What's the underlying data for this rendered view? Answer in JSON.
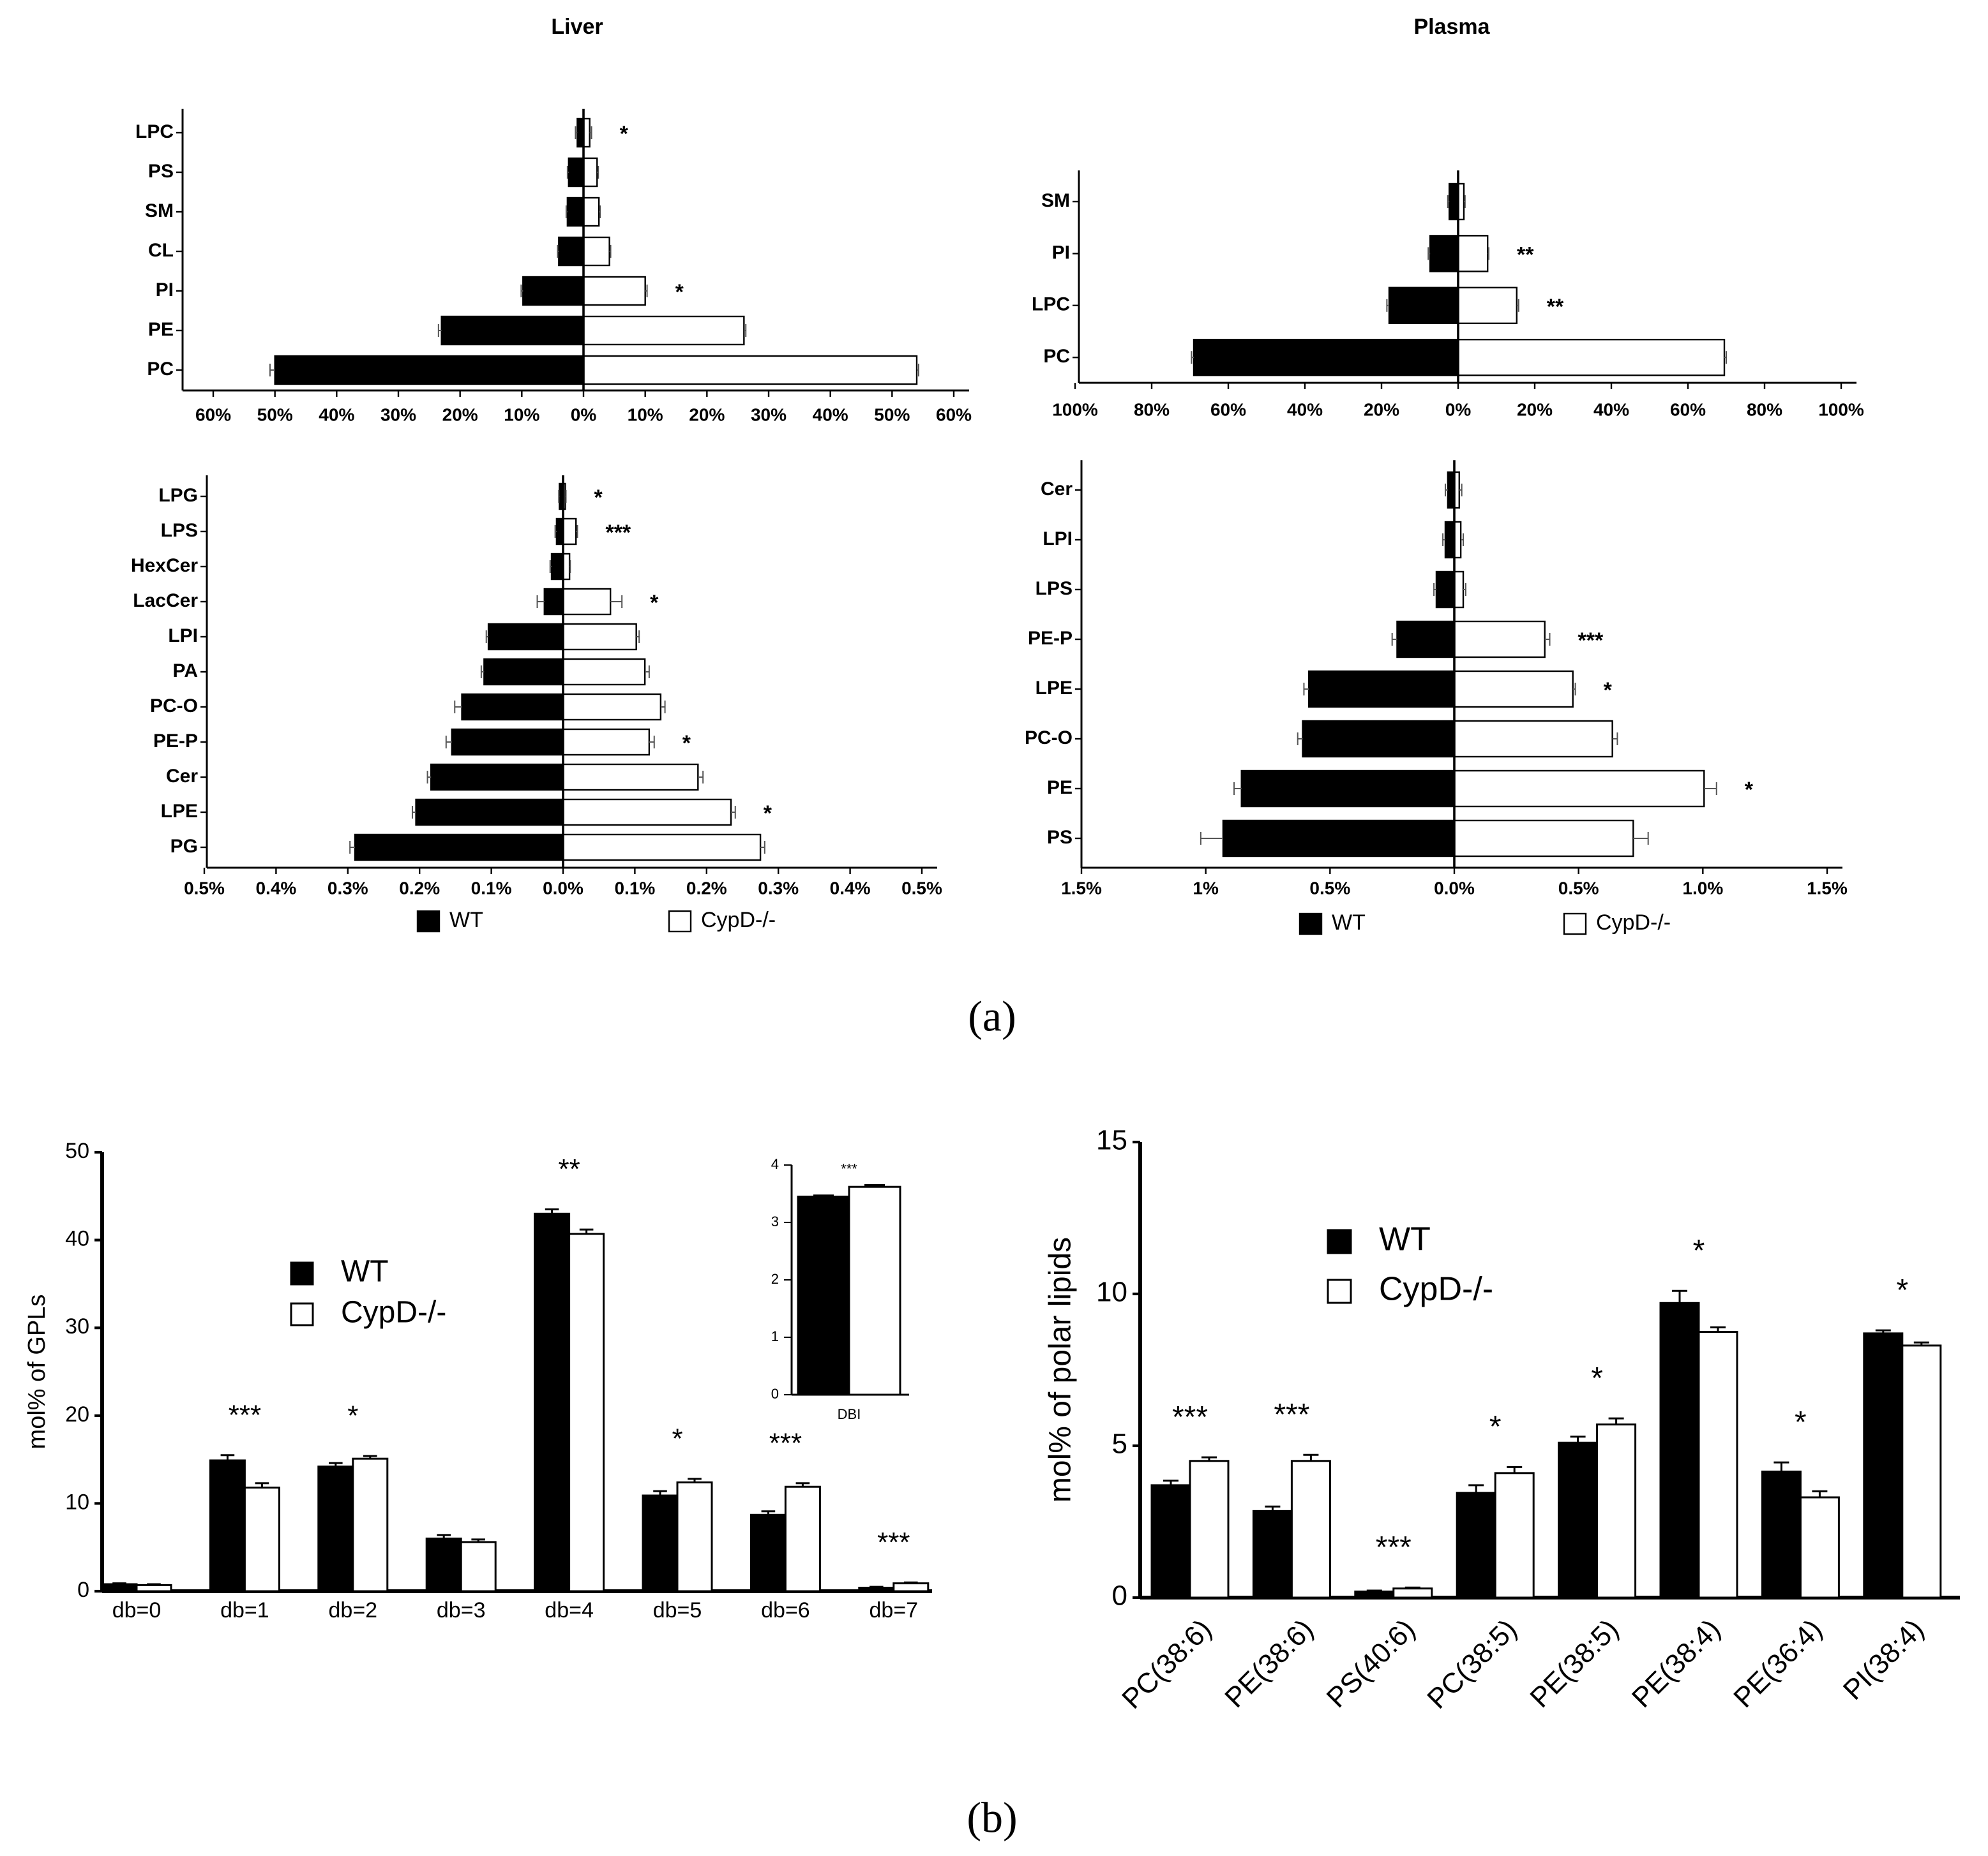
{
  "panel_labels": [
    "(a)",
    "(b)"
  ],
  "chart_data": [
    {
      "type": "butterfly",
      "title": "Liver",
      "categories": [
        "LPC",
        "PS",
        "SM",
        "CL",
        "PI",
        "PE",
        "PC"
      ],
      "series": [
        {
          "color": "#000000",
          "values": [
            1.0,
            2.4,
            2.6,
            4.0,
            9.8,
            23.0,
            50.0
          ],
          "errors": [
            0.3,
            0.2,
            0.2,
            0.2,
            0.3,
            0.5,
            0.8
          ]
        },
        {
          "color": "#ffffff",
          "values": [
            1.0,
            2.2,
            2.5,
            4.2,
            10.0,
            26.0,
            54.0
          ],
          "errors": [
            0.3,
            0.2,
            0.2,
            0.2,
            0.3,
            0.3,
            0.3
          ]
        }
      ],
      "significance": [
        "*",
        null,
        null,
        null,
        "*",
        null,
        null
      ],
      "left_xlim": [
        60,
        0
      ],
      "right_xlim": [
        0,
        60
      ],
      "left_xticks": [
        {
          "value": 60,
          "label": "60%"
        },
        {
          "value": 50,
          "label": "50%"
        },
        {
          "value": 40,
          "label": "40%"
        },
        {
          "value": 30,
          "label": "30%"
        },
        {
          "value": 20,
          "label": "20%"
        },
        {
          "value": 10,
          "label": "10%"
        },
        {
          "value": 0,
          "label": "0%"
        }
      ],
      "right_xticks": [
        {
          "value": 10,
          "label": "10%"
        },
        {
          "value": 20,
          "label": "20%"
        },
        {
          "value": 30,
          "label": "30%"
        },
        {
          "value": 40,
          "label": "40%"
        },
        {
          "value": 50,
          "label": "50%"
        },
        {
          "value": 60,
          "label": "60%"
        }
      ]
    },
    {
      "type": "butterfly",
      "title": "Plasma",
      "categories": [
        "SM",
        "PI",
        "LPC",
        "PC"
      ],
      "series": [
        {
          "color": "#000000",
          "values": [
            2.3,
            7.3,
            18.0,
            69.0
          ],
          "errors": [
            0.4,
            0.5,
            0.6,
            0.6
          ]
        },
        {
          "color": "#ffffff",
          "values": [
            1.5,
            7.7,
            15.3,
            69.5
          ],
          "errors": [
            0.3,
            0.3,
            0.5,
            0.5
          ]
        }
      ],
      "significance": [
        null,
        "**",
        "**",
        null
      ],
      "left_xlim": [
        100,
        0
      ],
      "right_xlim": [
        0,
        100
      ],
      "left_xticks": [
        {
          "value": 100,
          "label": "100%"
        },
        {
          "value": 80,
          "label": "80%"
        },
        {
          "value": 60,
          "label": "60%"
        },
        {
          "value": 40,
          "label": "40%"
        },
        {
          "value": 20,
          "label": "20%"
        },
        {
          "value": 0,
          "label": "0%"
        }
      ],
      "right_xticks": [
        {
          "value": 20,
          "label": "20%"
        },
        {
          "value": 40,
          "label": "40%"
        },
        {
          "value": 60,
          "label": "60%"
        },
        {
          "value": 80,
          "label": "80%"
        },
        {
          "value": 100,
          "label": "100%"
        }
      ]
    },
    {
      "type": "butterfly",
      "categories": [
        "LPG",
        "LPS",
        "HexCer",
        "LacCer",
        "LPI",
        "PA",
        "PC-O",
        "PE-P",
        "Cer",
        "LPE",
        "PG"
      ],
      "series": [
        {
          "name": "WT",
          "color": "#000000",
          "values": [
            0.005,
            0.009,
            0.016,
            0.026,
            0.104,
            0.11,
            0.141,
            0.155,
            0.184,
            0.205,
            0.29
          ],
          "errors": [
            0.001,
            0.002,
            0.002,
            0.01,
            0.003,
            0.004,
            0.01,
            0.008,
            0.005,
            0.005,
            0.007
          ]
        },
        {
          "name": "CypD-/-",
          "color": "#ffffff",
          "values": [
            0.003,
            0.018,
            0.009,
            0.066,
            0.102,
            0.114,
            0.136,
            0.12,
            0.188,
            0.234,
            0.275
          ],
          "errors": [
            0.001,
            0.002,
            0.001,
            0.016,
            0.004,
            0.006,
            0.006,
            0.007,
            0.007,
            0.006,
            0.006
          ]
        }
      ],
      "significance": [
        "*",
        "***",
        null,
        "*",
        null,
        null,
        null,
        "*",
        null,
        "*",
        null
      ],
      "left_xlim": [
        0.5,
        0
      ],
      "right_xlim": [
        0,
        0.5
      ],
      "left_xticks": [
        {
          "value": 0.5,
          "label": "0.5%"
        },
        {
          "value": 0.4,
          "label": "0.4%"
        },
        {
          "value": 0.3,
          "label": "0.3%"
        },
        {
          "value": 0.2,
          "label": "0.2%"
        },
        {
          "value": 0.1,
          "label": "0.1%"
        },
        {
          "value": 0,
          "label": "0.0%"
        }
      ],
      "right_xticks": [
        {
          "value": 0.1,
          "label": "0.1%"
        },
        {
          "value": 0.2,
          "label": "0.2%"
        },
        {
          "value": 0.3,
          "label": "0.3%"
        },
        {
          "value": 0.4,
          "label": "0.4%"
        },
        {
          "value": 0.5,
          "label": "0.5%"
        }
      ]
    },
    {
      "type": "butterfly",
      "categories": [
        "Cer",
        "LPI",
        "LPS",
        "PE-P",
        "LPE",
        "PC-O",
        "PE",
        "PS"
      ],
      "series": [
        {
          "name": "WT",
          "color": "#000000",
          "values": [
            0.026,
            0.036,
            0.072,
            0.23,
            0.585,
            0.61,
            0.856,
            0.93
          ],
          "errors": [
            0.01,
            0.01,
            0.01,
            0.02,
            0.02,
            0.02,
            0.03,
            0.09
          ]
        },
        {
          "name": "CypD-/-",
          "color": "#ffffff",
          "values": [
            0.02,
            0.026,
            0.036,
            0.364,
            0.477,
            0.636,
            1.005,
            0.72
          ],
          "errors": [
            0.01,
            0.01,
            0.01,
            0.02,
            0.01,
            0.02,
            0.05,
            0.06
          ]
        }
      ],
      "significance": [
        null,
        null,
        null,
        "***",
        "*",
        null,
        "*",
        null
      ],
      "left_xlim": [
        1.5,
        0
      ],
      "right_xlim": [
        0,
        1.5
      ],
      "left_xticks": [
        {
          "value": 1.5,
          "label": "1.5%"
        },
        {
          "value": 1,
          "label": "1%"
        },
        {
          "value": 0.5,
          "label": "0.5%"
        },
        {
          "value": 0,
          "label": "0.0%"
        }
      ],
      "right_xticks": [
        {
          "value": 0.5,
          "label": "0.5%"
        },
        {
          "value": 1,
          "label": "1.0%"
        },
        {
          "value": 1.5,
          "label": "1.5%"
        }
      ]
    },
    {
      "type": "bar",
      "ylabel": "mol% of GPLs",
      "categories": [
        "db=0",
        "db=1",
        "db=2",
        "db=3",
        "db=4",
        "db=5",
        "db=6",
        "db=7"
      ],
      "series": [
        {
          "name": "WT",
          "color": "#000000",
          "values": [
            0.8,
            14.9,
            14.2,
            6.0,
            43.0,
            10.9,
            8.7,
            0.4
          ],
          "errors": [
            0.1,
            0.6,
            0.4,
            0.4,
            0.5,
            0.5,
            0.4,
            0.1
          ]
        },
        {
          "name": "CypD-/-",
          "color": "#ffffff",
          "values": [
            0.7,
            11.8,
            15.1,
            5.6,
            40.7,
            12.4,
            11.9,
            0.9
          ],
          "errors": [
            0.1,
            0.5,
            0.3,
            0.3,
            0.5,
            0.4,
            0.4,
            0.1
          ]
        }
      ],
      "significance": [
        null,
        "***",
        "*",
        null,
        "**",
        "*",
        "***",
        "***"
      ],
      "ylim": [
        0,
        50
      ],
      "yticks": [
        0,
        10,
        20,
        30,
        40,
        50
      ]
    },
    {
      "type": "bar",
      "categories": [
        "DBI"
      ],
      "series": [
        {
          "color": "#000000",
          "values": [
            3.45
          ],
          "errors": [
            0.02
          ]
        },
        {
          "color": "#ffffff",
          "values": [
            3.62
          ],
          "errors": [
            0.03
          ]
        }
      ],
      "significance": [
        "***"
      ],
      "ylim": [
        0,
        4
      ],
      "yticks": [
        0,
        1,
        2,
        3,
        4
      ]
    },
    {
      "type": "bar",
      "ylabel": "mol% of polar lipids",
      "categories": [
        "PC(38:6)",
        "PE(38:6)",
        "PS(40:6)",
        "PC(38:5)",
        "PE(38:5)",
        "PE(38:4)",
        "PE(36:4)",
        "PI(38:4)"
      ],
      "series": [
        {
          "name": "WT",
          "color": "#000000",
          "values": [
            3.7,
            2.85,
            0.2,
            3.45,
            5.1,
            9.7,
            4.15,
            8.7
          ],
          "errors": [
            0.15,
            0.15,
            0.03,
            0.25,
            0.2,
            0.4,
            0.3,
            0.1
          ]
        },
        {
          "name": "CypD-/-",
          "color": "#ffffff",
          "values": [
            4.5,
            4.5,
            0.3,
            4.1,
            5.7,
            8.75,
            3.3,
            8.3
          ],
          "errors": [
            0.12,
            0.2,
            0.03,
            0.2,
            0.2,
            0.15,
            0.2,
            0.1
          ]
        }
      ],
      "significance": [
        "***",
        "***",
        "***",
        "*",
        "*",
        "*",
        "*",
        "*"
      ],
      "ylim": [
        0,
        15
      ],
      "yticks": [
        0,
        5,
        10,
        15
      ]
    }
  ]
}
